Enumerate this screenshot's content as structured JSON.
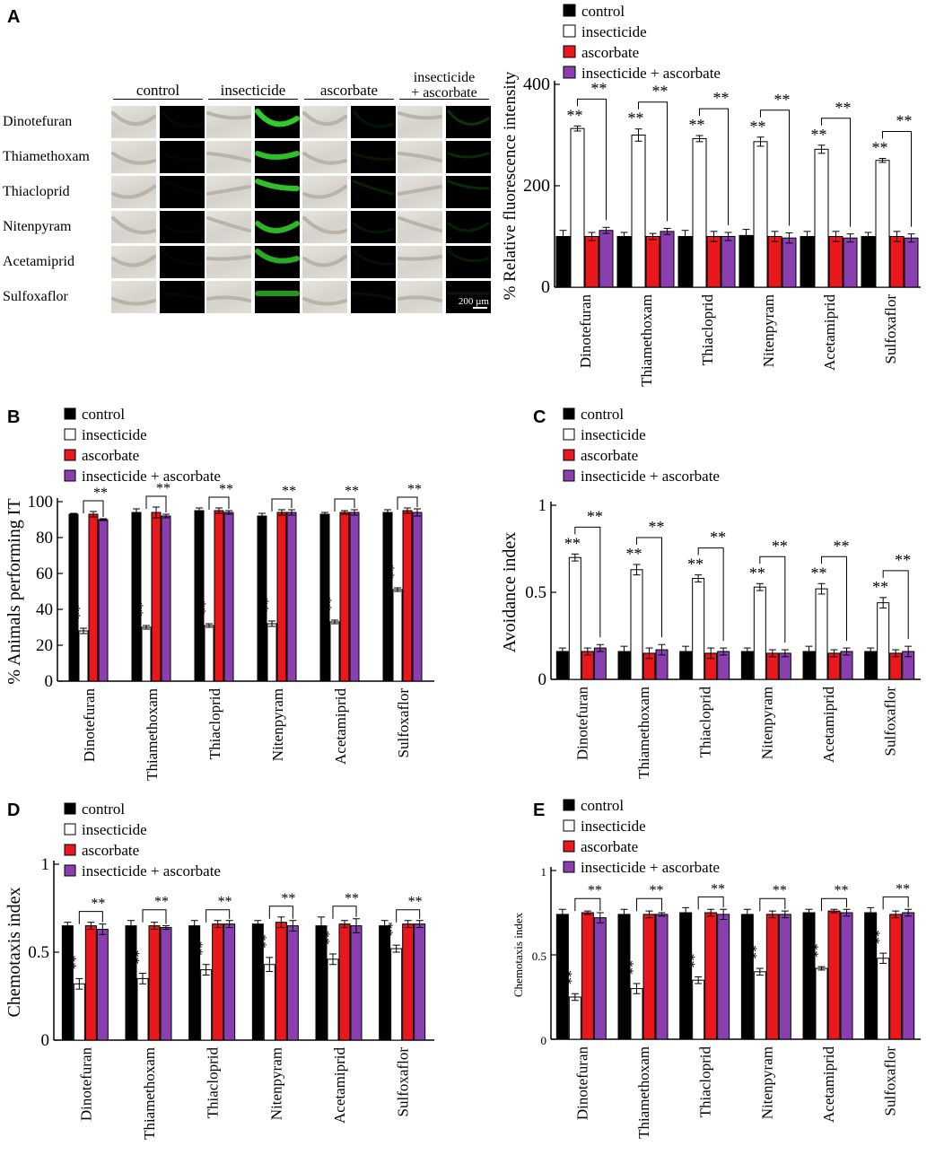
{
  "panel_letters": {
    "a": "A",
    "b": "B",
    "c": "C",
    "d": "D",
    "e": "E"
  },
  "legend_labels": [
    "control",
    "insecticide",
    "ascorbate",
    "insecticide + ascorbate"
  ],
  "significance": "**",
  "colors": {
    "control": "#000000",
    "insecticide": "#ffffff",
    "ascorbate": "#e8181c",
    "insecticide_ascorbate": "#8a3fb0",
    "fluorescence": "#33d62b"
  },
  "micrograph": {
    "columns": [
      "control",
      "insecticide",
      "ascorbate",
      "insecticide\n+ ascorbate"
    ],
    "rows": [
      "Dinotefuran",
      "Thiamethoxam",
      "Thiacloprid",
      "Nitenpyram",
      "Acetamiprid",
      "Sulfoxaflor"
    ],
    "fluorescence_level": [
      [
        0.05,
        0.95,
        0.1,
        0.25
      ],
      [
        0.03,
        0.9,
        0.1,
        0.2
      ],
      [
        0.03,
        0.9,
        0.15,
        0.2
      ],
      [
        0.03,
        0.85,
        0.1,
        0.15
      ],
      [
        0.03,
        0.8,
        0.08,
        0.12
      ],
      [
        0.03,
        0.7,
        0.08,
        0.12
      ]
    ],
    "scale_bar": "200 µm"
  },
  "chart_data": [
    {
      "id": "A",
      "type": "bar",
      "categories": [
        "Dinotefuran",
        "Thiamethoxam",
        "Thiacloprid",
        "Nitenpyram",
        "Acetamiprid",
        "Sulfoxaflor"
      ],
      "ylabel": "% Relative fluorescence intensity",
      "ylim": [
        0,
        400
      ],
      "yticks": [
        0,
        200,
        400
      ],
      "series": [
        {
          "name": "control",
          "values": [
            100,
            100,
            100,
            102,
            100,
            100
          ],
          "errors": [
            12,
            8,
            12,
            12,
            10,
            8
          ]
        },
        {
          "name": "insecticide",
          "values": [
            313,
            300,
            293,
            287,
            272,
            250
          ],
          "errors": [
            5,
            12,
            6,
            9,
            8,
            4
          ]
        },
        {
          "name": "ascorbate",
          "values": [
            100,
            100,
            100,
            100,
            100,
            100
          ],
          "errors": [
            8,
            6,
            10,
            10,
            10,
            10
          ]
        },
        {
          "name": "insecticide + ascorbate",
          "values": [
            112,
            110,
            100,
            97,
            97,
            97
          ],
          "errors": [
            6,
            6,
            8,
            10,
            8,
            8
          ]
        }
      ],
      "significance_marked": true
    },
    {
      "id": "B",
      "type": "bar",
      "categories": [
        "Dinotefuran",
        "Thiamethoxam",
        "Thiacloprid",
        "Nitenpyram",
        "Acetamiprid",
        "Sulfoxaflor"
      ],
      "ylabel": "% Animals performing IT",
      "ylim": [
        0,
        100
      ],
      "yticks": [
        0,
        20,
        40,
        60,
        80,
        100
      ],
      "series": [
        {
          "name": "control",
          "values": [
            93,
            94,
            95,
            92,
            93,
            94
          ],
          "errors": [
            0.5,
            2,
            1.5,
            1.5,
            1,
            1.5
          ]
        },
        {
          "name": "insecticide",
          "values": [
            28,
            30,
            31,
            32,
            33,
            51
          ],
          "errors": [
            1.5,
            1,
            1,
            1.5,
            1,
            1
          ]
        },
        {
          "name": "ascorbate",
          "values": [
            93,
            94,
            95,
            94,
            94,
            95
          ],
          "errors": [
            1.5,
            3,
            1.5,
            1.5,
            1,
            1.5
          ]
        },
        {
          "name": "insecticide + ascorbate",
          "values": [
            90,
            92,
            94,
            94,
            94,
            94
          ],
          "errors": [
            0.5,
            1,
            1,
            1.5,
            1.5,
            2
          ]
        }
      ],
      "significance_marked": true
    },
    {
      "id": "C",
      "type": "bar",
      "categories": [
        "Dinotefuran",
        "Thiamethoxam",
        "Thiacloprid",
        "Nitenpyram",
        "Acetamiprid",
        "Sulfoxaflor"
      ],
      "ylabel": "Avoidance index",
      "ylim": [
        0,
        1
      ],
      "yticks": [
        0,
        0.5,
        1
      ],
      "ytick_labels": [
        "0",
        "0.5",
        "1"
      ],
      "series": [
        {
          "name": "control",
          "values": [
            0.16,
            0.16,
            0.16,
            0.16,
            0.16,
            0.16
          ],
          "errors": [
            0.02,
            0.03,
            0.03,
            0.02,
            0.03,
            0.02
          ]
        },
        {
          "name": "insecticide",
          "values": [
            0.7,
            0.63,
            0.58,
            0.53,
            0.52,
            0.44
          ],
          "errors": [
            0.02,
            0.03,
            0.02,
            0.02,
            0.03,
            0.03
          ]
        },
        {
          "name": "ascorbate",
          "values": [
            0.16,
            0.15,
            0.15,
            0.15,
            0.15,
            0.15
          ],
          "errors": [
            0.02,
            0.03,
            0.03,
            0.02,
            0.02,
            0.02
          ]
        },
        {
          "name": "insecticide + ascorbate",
          "values": [
            0.18,
            0.17,
            0.16,
            0.15,
            0.16,
            0.16
          ],
          "errors": [
            0.02,
            0.03,
            0.02,
            0.02,
            0.02,
            0.03
          ]
        }
      ],
      "significance_marked": true
    },
    {
      "id": "D",
      "type": "bar",
      "categories": [
        "Dinotefuran",
        "Thiamethoxam",
        "Thiacloprid",
        "Nitenpyram",
        "Acetamiprid",
        "Sulfoxaflor"
      ],
      "ylabel": "Chemotaxis index",
      "ylim": [
        0,
        1
      ],
      "yticks": [
        0,
        0.5,
        1
      ],
      "ytick_labels": [
        "0",
        "0.5",
        "1"
      ],
      "series": [
        {
          "name": "control",
          "values": [
            0.65,
            0.65,
            0.65,
            0.66,
            0.65,
            0.65
          ],
          "errors": [
            0.02,
            0.03,
            0.03,
            0.02,
            0.05,
            0.03
          ]
        },
        {
          "name": "insecticide",
          "values": [
            0.32,
            0.35,
            0.4,
            0.43,
            0.46,
            0.52
          ],
          "errors": [
            0.03,
            0.03,
            0.03,
            0.04,
            0.03,
            0.02
          ]
        },
        {
          "name": "ascorbate",
          "values": [
            0.65,
            0.65,
            0.66,
            0.67,
            0.66,
            0.66
          ],
          "errors": [
            0.02,
            0.02,
            0.02,
            0.03,
            0.02,
            0.02
          ]
        },
        {
          "name": "insecticide + ascorbate",
          "values": [
            0.63,
            0.64,
            0.66,
            0.65,
            0.65,
            0.66
          ],
          "errors": [
            0.03,
            0.01,
            0.02,
            0.03,
            0.04,
            0.02
          ]
        }
      ],
      "significance_marked": true
    },
    {
      "id": "E",
      "type": "bar",
      "categories": [
        "Dinotefuran",
        "Thiamethoxam",
        "Thiacloprid",
        "Nitenpyram",
        "Acetamiprid",
        "Sulfoxaflor"
      ],
      "ylabel": "Chemotaxis index",
      "ylim": [
        0,
        1
      ],
      "yticks": [
        0,
        0.5,
        1
      ],
      "ytick_labels": [
        "0",
        "0.5",
        "1"
      ],
      "series": [
        {
          "name": "control",
          "values": [
            0.74,
            0.74,
            0.75,
            0.74,
            0.75,
            0.75
          ],
          "errors": [
            0.03,
            0.03,
            0.03,
            0.03,
            0.02,
            0.03
          ]
        },
        {
          "name": "insecticide",
          "values": [
            0.25,
            0.3,
            0.35,
            0.4,
            0.42,
            0.48
          ],
          "errors": [
            0.02,
            0.03,
            0.02,
            0.02,
            0.01,
            0.03
          ]
        },
        {
          "name": "ascorbate",
          "values": [
            0.75,
            0.74,
            0.75,
            0.74,
            0.76,
            0.74
          ],
          "errors": [
            0.01,
            0.02,
            0.02,
            0.02,
            0.01,
            0.02
          ]
        },
        {
          "name": "insecticide + ascorbate",
          "values": [
            0.72,
            0.74,
            0.74,
            0.74,
            0.75,
            0.75
          ],
          "errors": [
            0.03,
            0.01,
            0.03,
            0.02,
            0.02,
            0.02
          ]
        }
      ],
      "significance_marked": true
    }
  ]
}
